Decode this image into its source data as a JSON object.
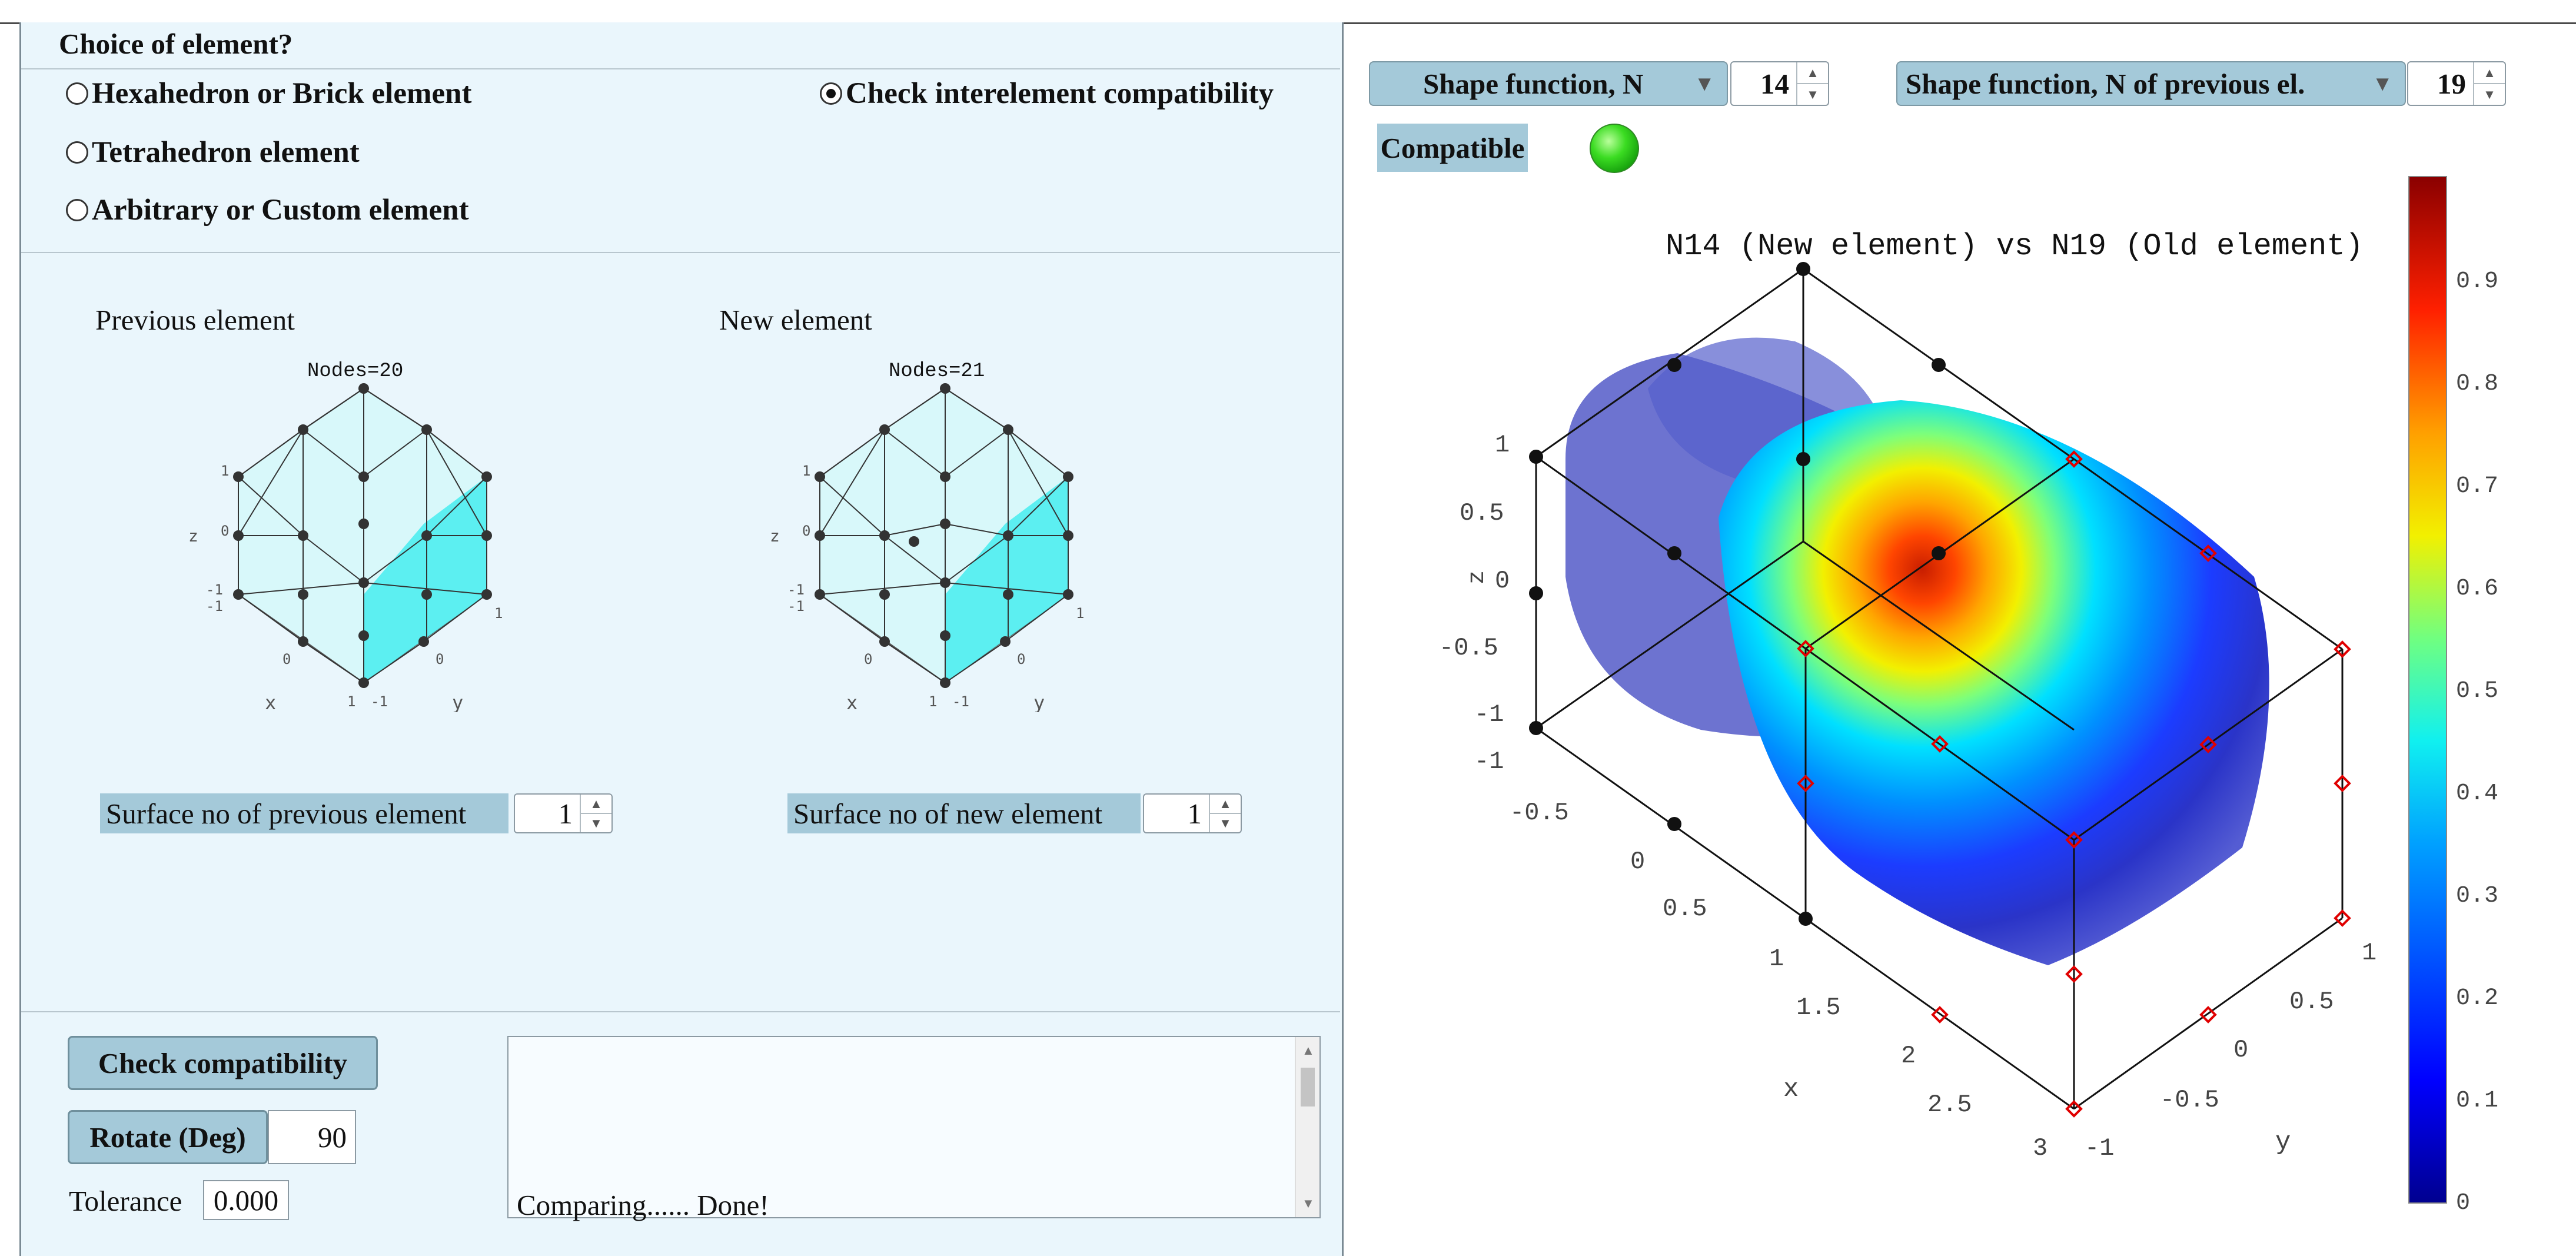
{
  "left_panel": {
    "header": "Choice of element?",
    "radios": [
      {
        "label": "Hexahedron or Brick element",
        "selected": false
      },
      {
        "label": "Tetrahedron element",
        "selected": false
      },
      {
        "label": "Arbitrary or Custom element",
        "selected": false
      },
      {
        "label": "Check interelement compatibility",
        "selected": true
      }
    ],
    "previous_element": {
      "title": "Previous element",
      "nodes_label": "Nodes=20",
      "axis_labels": {
        "x": "x",
        "y": "y",
        "z": "z"
      },
      "ticks": {
        "z_top": "1",
        "z_mid": "0",
        "z_bot1": "-1",
        "z_bot2": "-1",
        "x_zero": "0",
        "x_one": "1",
        "y_neg": "-1",
        "y_zero": "0",
        "y_one": "1"
      },
      "surface_label": "Surface no of previous element",
      "surface_value": "1"
    },
    "new_element": {
      "title": "New element",
      "nodes_label": "Nodes=21",
      "axis_labels": {
        "x": "x",
        "y": "y",
        "z": "z"
      },
      "ticks": {
        "z_top": "1",
        "z_mid": "0",
        "z_bot1": "-1",
        "z_bot2": "-1",
        "x_zero": "0",
        "x_one": "1",
        "y_neg": "-1",
        "y_zero": "0",
        "y_one": "1"
      },
      "surface_label": "Surface no of new element",
      "surface_value": "1"
    },
    "check_button": "Check compatibility",
    "rotate_label": "Rotate (Deg)",
    "rotate_value": "90",
    "tolerance_label": "Tolerance",
    "tolerance_value": "0.000",
    "log_text": "Comparing...... Done!"
  },
  "right_panel": {
    "shape_function": {
      "label": "Shape function, N",
      "value": "14"
    },
    "shape_function_prev": {
      "label": "Shape function, N of previous el.",
      "value": "19"
    },
    "compatible_label": "Compatible",
    "compatible_color": "#33d11d",
    "plot": {
      "title": "N14 (New element) vs N19 (Old element)",
      "axis_labels": {
        "x": "x",
        "y": "y",
        "z": "z"
      },
      "z_ticks": [
        "1",
        "0.5",
        "0",
        "-0.5",
        "-1"
      ],
      "x_ticks": [
        "-1",
        "-0.5",
        "0",
        "0.5",
        "1",
        "1.5",
        "2",
        "2.5",
        "3"
      ],
      "y_ticks": [
        "-1",
        "-0.5",
        "0",
        "0.5",
        "1"
      ],
      "colorbar_ticks": [
        "0.9",
        "0.8",
        "0.7",
        "0.6",
        "0.5",
        "0.4",
        "0.3",
        "0.2",
        "0.1",
        "0"
      ],
      "colorbar_range": [
        0,
        1
      ],
      "colormap": "jet"
    }
  }
}
